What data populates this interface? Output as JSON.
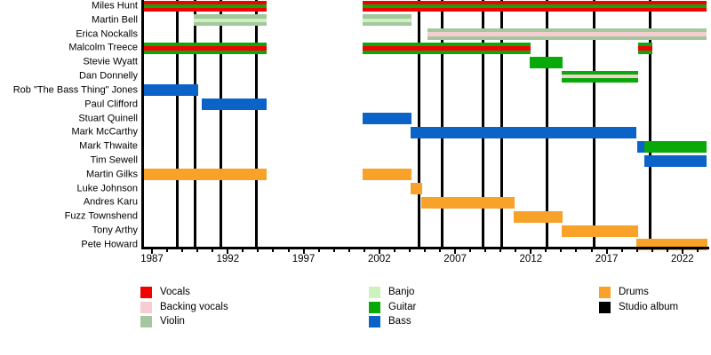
{
  "chart_data": {
    "type": "timeline",
    "description": "Band members timeline (Gantt-style) with studio album release lines",
    "axis": {
      "start": 1986.41,
      "end": 2023.71,
      "major_ticks": [
        1987,
        1992,
        1997,
        2002,
        2007,
        2012,
        2017,
        2022
      ],
      "minor_tick_step": 1
    },
    "colors": {
      "vocals": "#f40000",
      "backing_vocals": "#f6ced2",
      "violin": "#a4c79e",
      "banjo": "#cdf1c1",
      "guitar": "#08a908",
      "bass": "#0b63c8",
      "drums": "#f8a229",
      "studio_album": "#000000",
      "axis": "#000000",
      "background": "#ffffff"
    },
    "members": [
      {
        "name": "Miles Hunt",
        "stints": [
          {
            "from": 1986.41,
            "to": 1994.57,
            "layers": [
              "vocals",
              "guitar",
              "vocals"
            ]
          },
          {
            "from": 2000.9,
            "to": 2023.6,
            "layers": [
              "vocals",
              "guitar",
              "vocals"
            ]
          }
        ]
      },
      {
        "name": "Martin Bell",
        "stints": [
          {
            "from": 1989.76,
            "to": 1994.57,
            "layers": [
              "violin",
              "banjo",
              "violin"
            ]
          },
          {
            "from": 2000.9,
            "to": 2004.13,
            "layers": [
              "violin",
              "banjo",
              "violin"
            ]
          }
        ]
      },
      {
        "name": "Erica Nockalls",
        "stints": [
          {
            "from": 2005.18,
            "to": 2023.6,
            "layers": [
              "violin",
              "backing_vocals",
              "violin"
            ]
          }
        ]
      },
      {
        "name": "Malcolm Treece",
        "stints": [
          {
            "from": 1986.41,
            "to": 1994.57,
            "layers": [
              "guitar",
              "vocals",
              "guitar"
            ]
          },
          {
            "from": 2000.9,
            "to": 2011.99,
            "layers": [
              "guitar",
              "vocals",
              "guitar"
            ]
          },
          {
            "from": 2019.06,
            "to": 2020.02,
            "layers": [
              "guitar",
              "vocals",
              "guitar"
            ]
          }
        ]
      },
      {
        "name": "Stevie Wyatt",
        "stints": [
          {
            "from": 2011.93,
            "to": 2014.1,
            "layers": [
              "guitar"
            ]
          }
        ]
      },
      {
        "name": "Dan Donnelly",
        "stints": [
          {
            "from": 2014.02,
            "to": 2019.1,
            "layers": [
              "guitar",
              "backing_vocals",
              "guitar"
            ]
          }
        ]
      },
      {
        "name": "Rob \"The Bass Thing\" Jones",
        "stints": [
          {
            "from": 1986.41,
            "to": 1990.03,
            "layers": [
              "bass"
            ]
          }
        ]
      },
      {
        "name": "Paul Clifford",
        "stints": [
          {
            "from": 1990.27,
            "to": 1994.57,
            "layers": [
              "bass"
            ]
          }
        ]
      },
      {
        "name": "Stuart Quinell",
        "stints": [
          {
            "from": 2000.9,
            "to": 2004.13,
            "layers": [
              "bass"
            ]
          }
        ]
      },
      {
        "name": "Mark McCarthy",
        "stints": [
          {
            "from": 2004.07,
            "to": 2018.96,
            "layers": [
              "bass"
            ]
          }
        ]
      },
      {
        "name": "Mark Thwaite",
        "stints": [
          {
            "from": 2019.0,
            "to": 2019.49,
            "layers": [
              "bass"
            ]
          },
          {
            "from": 2019.49,
            "to": 2023.6,
            "layers": [
              "guitar"
            ]
          }
        ]
      },
      {
        "name": "Tim Sewell",
        "stints": [
          {
            "from": 2019.49,
            "to": 2023.6,
            "layers": [
              "bass"
            ]
          }
        ]
      },
      {
        "name": "Martin Gilks",
        "stints": [
          {
            "from": 1986.41,
            "to": 1994.57,
            "layers": [
              "drums"
            ]
          },
          {
            "from": 2000.9,
            "to": 2004.13,
            "layers": [
              "drums"
            ]
          }
        ]
      },
      {
        "name": "Luke Johnson",
        "stints": [
          {
            "from": 2004.07,
            "to": 2004.83,
            "layers": [
              "drums"
            ]
          }
        ]
      },
      {
        "name": "Andres Karu",
        "stints": [
          {
            "from": 2004.77,
            "to": 2010.93,
            "layers": [
              "drums"
            ]
          }
        ]
      },
      {
        "name": "Fuzz Townshend",
        "stints": [
          {
            "from": 2010.87,
            "to": 2014.1,
            "layers": [
              "drums"
            ]
          }
        ]
      },
      {
        "name": "Tony Arthy",
        "stints": [
          {
            "from": 2014.02,
            "to": 2019.1,
            "layers": [
              "drums"
            ]
          }
        ]
      },
      {
        "name": "Pete Howard",
        "stints": [
          {
            "from": 2018.96,
            "to": 2023.66,
            "layers": [
              "drums"
            ]
          }
        ]
      }
    ],
    "studio_album_lines": [
      1988.64,
      1989.87,
      1991.53,
      1993.88,
      2004.64,
      2006.16,
      2008.82,
      2010.07,
      2013.06,
      2016.18,
      2019.84
    ]
  },
  "legend": {
    "columns": [
      {
        "items": [
          {
            "label": "Vocals",
            "role": "vocals"
          },
          {
            "label": "Backing vocals",
            "role": "backing_vocals"
          },
          {
            "label": "Violin",
            "role": "violin"
          }
        ]
      },
      {
        "items": [
          {
            "label": "Banjo",
            "role": "banjo"
          },
          {
            "label": "Guitar",
            "role": "guitar"
          },
          {
            "label": "Bass",
            "role": "bass"
          }
        ]
      },
      {
        "items": [
          {
            "label": "Drums",
            "role": "drums"
          },
          {
            "label": "Studio album",
            "role": "studio_album"
          }
        ]
      }
    ]
  }
}
